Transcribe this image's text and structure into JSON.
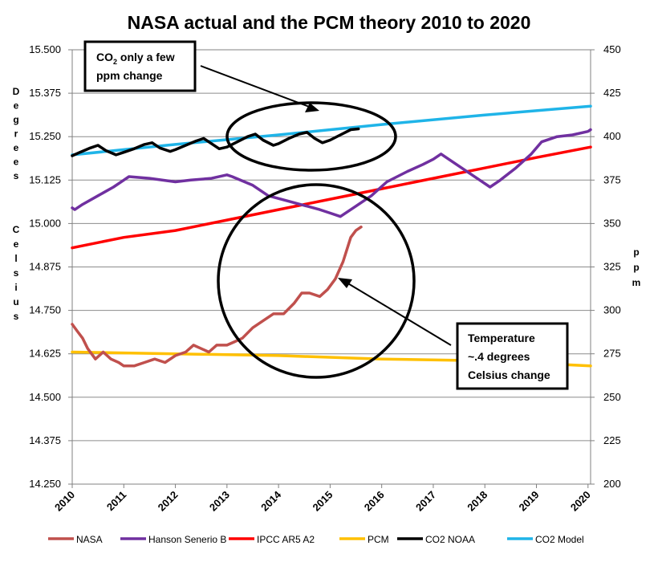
{
  "chart_data": {
    "type": "line",
    "title": "NASA actual and the PCM theory 2010 to 2020",
    "x_ticks": [
      "2010",
      "2011",
      "2012",
      "2013",
      "2014",
      "2015",
      "2016",
      "2017",
      "2018",
      "2019",
      "2020"
    ],
    "xlim": [
      2010,
      2020.05
    ],
    "y_left": {
      "label_words": [
        "Degrees",
        "Celsius"
      ],
      "ticks": [
        "14.250",
        "14.375",
        "14.500",
        "14.625",
        "14.750",
        "14.875",
        "15.000",
        "15.125",
        "15.250",
        "15.375",
        "15.500"
      ],
      "range": [
        14.25,
        15.5
      ]
    },
    "y_right": {
      "label": "ppm",
      "ticks": [
        "200",
        "225",
        "250",
        "275",
        "300",
        "325",
        "350",
        "375",
        "400",
        "425",
        "450"
      ],
      "range": [
        200,
        450
      ]
    },
    "series": [
      {
        "name": "NASA",
        "color": "#C0504D",
        "axis": "left",
        "points": [
          [
            2010.0,
            14.71
          ],
          [
            2010.1,
            14.69
          ],
          [
            2010.2,
            14.67
          ],
          [
            2010.3,
            14.64
          ],
          [
            2010.45,
            14.61
          ],
          [
            2010.6,
            14.63
          ],
          [
            2010.75,
            14.61
          ],
          [
            2010.9,
            14.6
          ],
          [
            2011.0,
            14.59
          ],
          [
            2011.2,
            14.59
          ],
          [
            2011.4,
            14.6
          ],
          [
            2011.6,
            14.61
          ],
          [
            2011.8,
            14.6
          ],
          [
            2012.0,
            14.62
          ],
          [
            2012.2,
            14.63
          ],
          [
            2012.35,
            14.65
          ],
          [
            2012.5,
            14.64
          ],
          [
            2012.65,
            14.63
          ],
          [
            2012.8,
            14.65
          ],
          [
            2013.0,
            14.65
          ],
          [
            2013.15,
            14.66
          ],
          [
            2013.3,
            14.67
          ],
          [
            2013.5,
            14.7
          ],
          [
            2013.7,
            14.72
          ],
          [
            2013.9,
            14.74
          ],
          [
            2014.1,
            14.74
          ],
          [
            2014.3,
            14.77
          ],
          [
            2014.45,
            14.8
          ],
          [
            2014.6,
            14.8
          ],
          [
            2014.8,
            14.79
          ],
          [
            2014.95,
            14.81
          ],
          [
            2015.1,
            14.84
          ],
          [
            2015.25,
            14.89
          ],
          [
            2015.4,
            14.96
          ],
          [
            2015.5,
            14.98
          ],
          [
            2015.6,
            14.99
          ]
        ]
      },
      {
        "name": "Hanson Senerio B",
        "color": "#7030A0",
        "axis": "left",
        "points": [
          [
            2010.0,
            15.045
          ],
          [
            2010.05,
            15.04
          ],
          [
            2010.2,
            15.055
          ],
          [
            2010.5,
            15.08
          ],
          [
            2010.8,
            15.105
          ],
          [
            2011.0,
            15.125
          ],
          [
            2011.1,
            15.135
          ],
          [
            2011.5,
            15.13
          ],
          [
            2012.0,
            15.12
          ],
          [
            2012.3,
            15.125
          ],
          [
            2012.7,
            15.13
          ],
          [
            2013.0,
            15.14
          ],
          [
            2013.1,
            15.135
          ],
          [
            2013.5,
            15.11
          ],
          [
            2013.8,
            15.08
          ],
          [
            2014.3,
            15.06
          ],
          [
            2014.8,
            15.04
          ],
          [
            2015.0,
            15.03
          ],
          [
            2015.2,
            15.02
          ],
          [
            2015.5,
            15.05
          ],
          [
            2015.8,
            15.08
          ],
          [
            2016.1,
            15.12
          ],
          [
            2016.5,
            15.15
          ],
          [
            2016.8,
            15.17
          ],
          [
            2017.0,
            15.185
          ],
          [
            2017.15,
            15.2
          ],
          [
            2017.3,
            15.185
          ],
          [
            2017.6,
            15.155
          ],
          [
            2017.9,
            15.125
          ],
          [
            2018.1,
            15.105
          ],
          [
            2018.3,
            15.125
          ],
          [
            2018.6,
            15.16
          ],
          [
            2018.9,
            15.2
          ],
          [
            2019.1,
            15.235
          ],
          [
            2019.4,
            15.25
          ],
          [
            2019.7,
            15.255
          ],
          [
            2020.0,
            15.265
          ],
          [
            2020.05,
            15.27
          ]
        ]
      },
      {
        "name": "IPCC AR5 A2",
        "color": "#FF0000",
        "axis": "left",
        "points": [
          [
            2010.0,
            14.93
          ],
          [
            2011.0,
            14.96
          ],
          [
            2012.0,
            14.98
          ],
          [
            2013.0,
            15.01
          ],
          [
            2014.0,
            15.04
          ],
          [
            2015.0,
            15.07
          ],
          [
            2016.0,
            15.1
          ],
          [
            2017.0,
            15.13
          ],
          [
            2018.0,
            15.16
          ],
          [
            2019.0,
            15.19
          ],
          [
            2020.05,
            15.22
          ]
        ]
      },
      {
        "name": "PCM",
        "color": "#FFC000",
        "axis": "left",
        "points": [
          [
            2010.0,
            14.63
          ],
          [
            2012.0,
            14.625
          ],
          [
            2014.0,
            14.62
          ],
          [
            2016.0,
            14.61
          ],
          [
            2018.0,
            14.605
          ],
          [
            2020.05,
            14.59
          ]
        ]
      },
      {
        "name": "CO2 NOAA",
        "color": "#000000",
        "axis": "right",
        "points": [
          [
            2010.0,
            389
          ],
          [
            2010.15,
            391
          ],
          [
            2010.35,
            393.5
          ],
          [
            2010.5,
            395
          ],
          [
            2010.65,
            392
          ],
          [
            2010.85,
            389.5
          ],
          [
            2011.0,
            391
          ],
          [
            2011.2,
            393
          ],
          [
            2011.4,
            395.5
          ],
          [
            2011.55,
            396.5
          ],
          [
            2011.7,
            393.5
          ],
          [
            2011.9,
            391.5
          ],
          [
            2012.0,
            392.5
          ],
          [
            2012.2,
            395
          ],
          [
            2012.4,
            397.5
          ],
          [
            2012.55,
            399
          ],
          [
            2012.7,
            396
          ],
          [
            2012.85,
            393
          ],
          [
            2013.0,
            394
          ],
          [
            2013.2,
            397
          ],
          [
            2013.4,
            400
          ],
          [
            2013.55,
            401.5
          ],
          [
            2013.7,
            398
          ],
          [
            2013.9,
            395
          ],
          [
            2014.0,
            396
          ],
          [
            2014.2,
            399
          ],
          [
            2014.4,
            401.5
          ],
          [
            2014.55,
            402.5
          ],
          [
            2014.7,
            399
          ],
          [
            2014.85,
            396.5
          ],
          [
            2015.0,
            398
          ],
          [
            2015.2,
            401
          ],
          [
            2015.4,
            404
          ],
          [
            2015.55,
            404.5
          ]
        ]
      },
      {
        "name": "CO2 Model",
        "color": "#1FB4E8",
        "axis": "right",
        "points": [
          [
            2010.0,
            389.5
          ],
          [
            2012.0,
            395.5
          ],
          [
            2014.0,
            401
          ],
          [
            2016.0,
            407
          ],
          [
            2018.0,
            412.5
          ],
          [
            2020.05,
            417.5
          ]
        ]
      }
    ],
    "annotations": [
      {
        "co2_main": "CO",
        "co2_sub": "2",
        "co2_rest": " only a few",
        "line2": "ppm change"
      },
      {
        "line1": "Temperature",
        "line2": "~.4 degrees",
        "line3": "Celsius change"
      }
    ],
    "legend_position": "bottom"
  }
}
